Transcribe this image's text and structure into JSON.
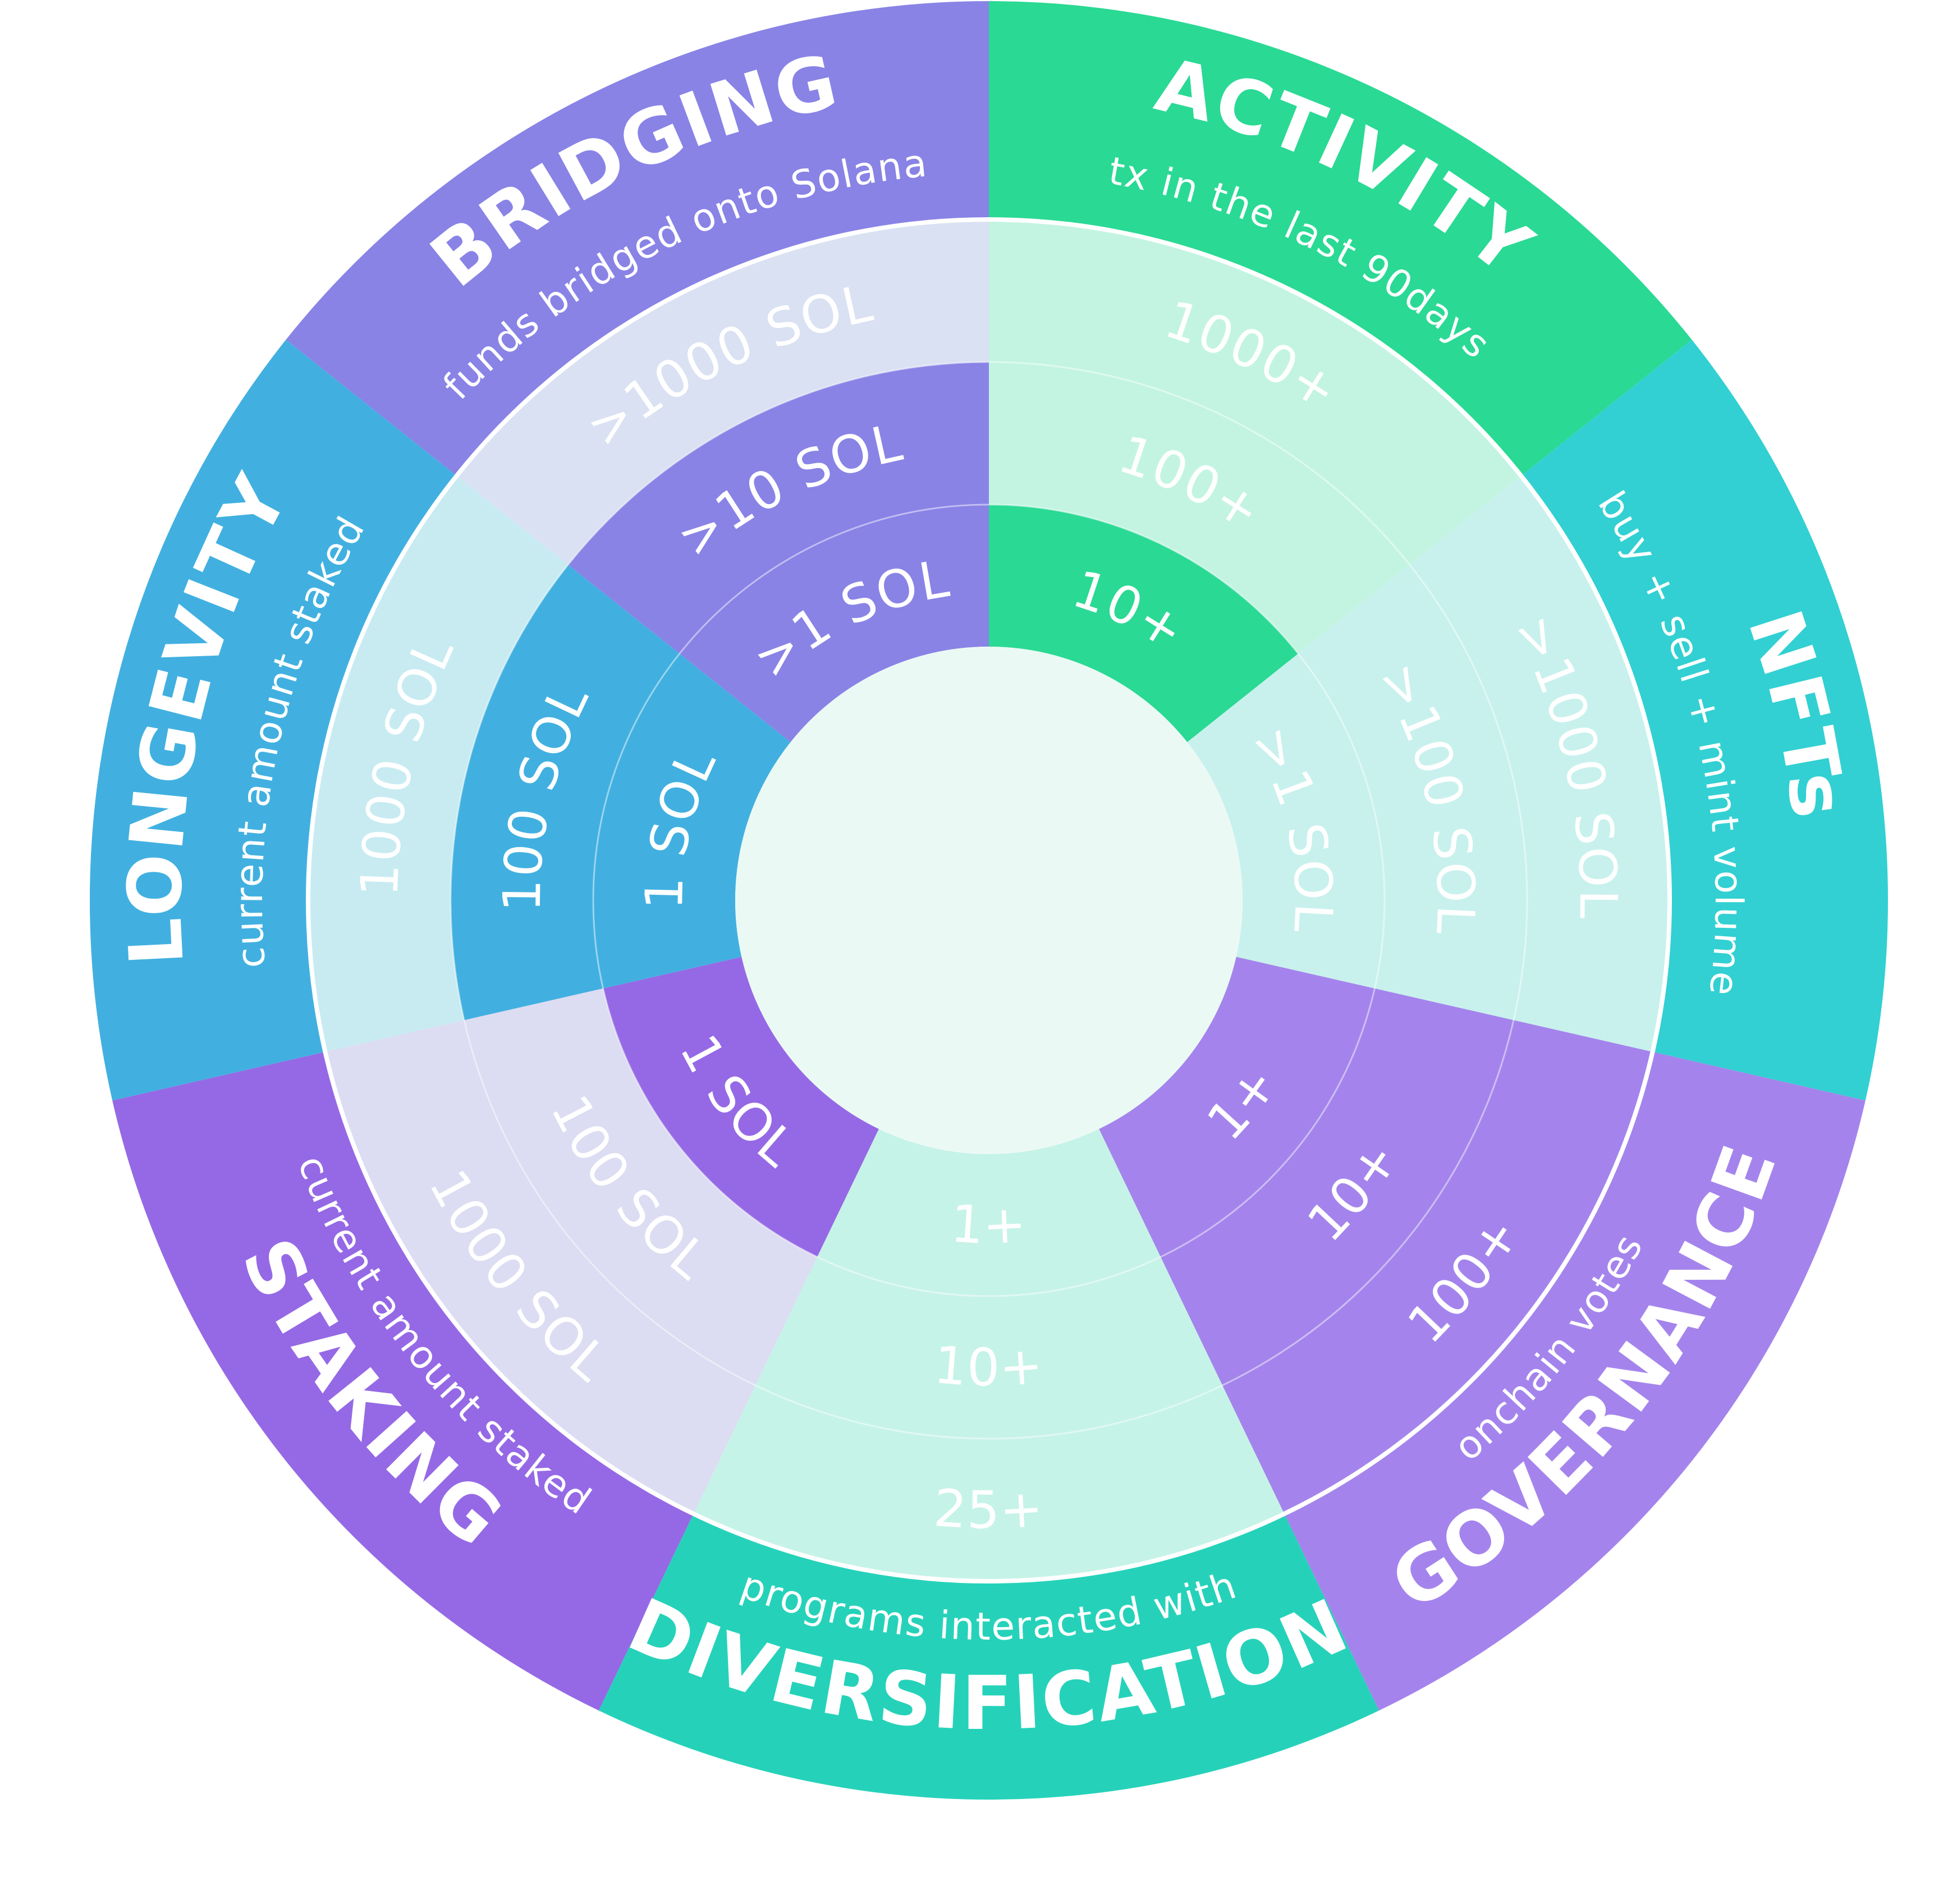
{
  "colors": {
    "center": "#ebf9f5",
    "separator": "#ffffff",
    "ring_line": "#ffffff"
  },
  "segments": [
    {
      "key": "activity",
      "title": "ACTIVITY",
      "subtitle": "tx in the last 90days",
      "outer_color": "#2ad994",
      "tiers": [
        {
          "label": "10+",
          "color": "#2ad994"
        },
        {
          "label": "100+",
          "color": "#c3f4e2"
        },
        {
          "label": "1000+",
          "color": "#c3f4e2"
        }
      ]
    },
    {
      "key": "nfts",
      "title": "NFTs",
      "subtitle": "buy + sell + mint volume",
      "outer_color": "#32d0d2",
      "tiers": [
        {
          "label": ">1 SOL",
          "color": "#c8f1ed"
        },
        {
          "label": ">100 SOL",
          "color": "#c8f1ed"
        },
        {
          "label": ">1000 SOL",
          "color": "#c8f1ed"
        }
      ]
    },
    {
      "key": "governance",
      "title": "GOVERNANCE",
      "subtitle": "onchain votes",
      "outer_color": "#a484ec",
      "tiers": [
        {
          "label": "1+",
          "color": "#a484ec"
        },
        {
          "label": "10+",
          "color": "#a484ec"
        },
        {
          "label": "100+",
          "color": "#a484ec"
        }
      ]
    },
    {
      "key": "diversification",
      "title": "DIVERSIFICATION",
      "subtitle": "programs interacted with",
      "outer_color": "#25d2b9",
      "tiers": [
        {
          "label": "1+",
          "color": "#c6f3e7"
        },
        {
          "label": "10+",
          "color": "#c6f3e7"
        },
        {
          "label": "25+",
          "color": "#c6f3e7"
        }
      ]
    },
    {
      "key": "staking",
      "title": "STAKING",
      "subtitle": "current amount staked",
      "outer_color": "#9569e5",
      "tiers": [
        {
          "label": "1 SOL",
          "color": "#9569e5"
        },
        {
          "label": "100 SOL",
          "color": "#dcdcf2"
        },
        {
          "label": "1000 SOL",
          "color": "#dcdcf2"
        }
      ]
    },
    {
      "key": "longevity",
      "title": "LONGEVITY",
      "subtitle": "current amount staked",
      "outer_color": "#41b0e0",
      "tiers": [
        {
          "label": "1 SOL",
          "color": "#41b0e0"
        },
        {
          "label": "100 SOL",
          "color": "#41b0e0"
        },
        {
          "label": "1000 SOL",
          "color": "#c8ebf2"
        }
      ]
    },
    {
      "key": "bridging",
      "title": "BRIDGING",
      "subtitle": "funds bridged onto Solana",
      "outer_color": "#8983e6",
      "tiers": [
        {
          "label": ">1 SOL",
          "color": "#8983e6"
        },
        {
          "label": ">10 SOL",
          "color": "#8983e6"
        },
        {
          "label": ">1000 SOL",
          "color": "#d9e1f2"
        }
      ]
    }
  ]
}
